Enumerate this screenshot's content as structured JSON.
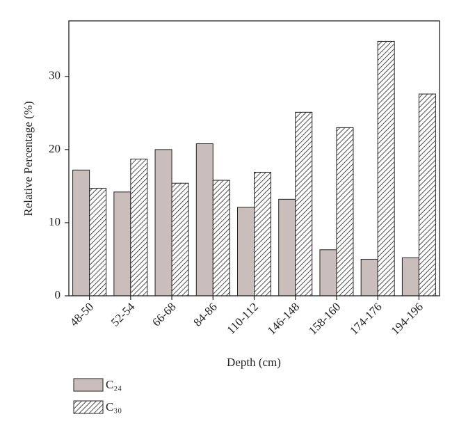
{
  "chart_data": {
    "type": "bar",
    "x_label": "Depth (cm)",
    "y_label": "Relative Percentage (%)",
    "categories": [
      "48-50",
      "52-54",
      "66-68",
      "84-86",
      "110-112",
      "146-148",
      "158-160",
      "174-176",
      "194-196"
    ],
    "series": [
      {
        "name": "C₂₄",
        "color": "#c9bebb",
        "hatch": false,
        "values": [
          17.2,
          14.2,
          20.0,
          20.8,
          12.1,
          13.2,
          6.3,
          5.0,
          5.2
        ]
      },
      {
        "name": "C₃₀",
        "color": "#ffffff",
        "hatch": true,
        "values": [
          14.7,
          18.7,
          15.4,
          15.8,
          16.9,
          25.1,
          23.0,
          34.8,
          27.6
        ]
      }
    ],
    "ylim": [
      0,
      37.6
    ],
    "yticks": [
      0,
      10,
      20,
      30
    ],
    "grid": false
  }
}
